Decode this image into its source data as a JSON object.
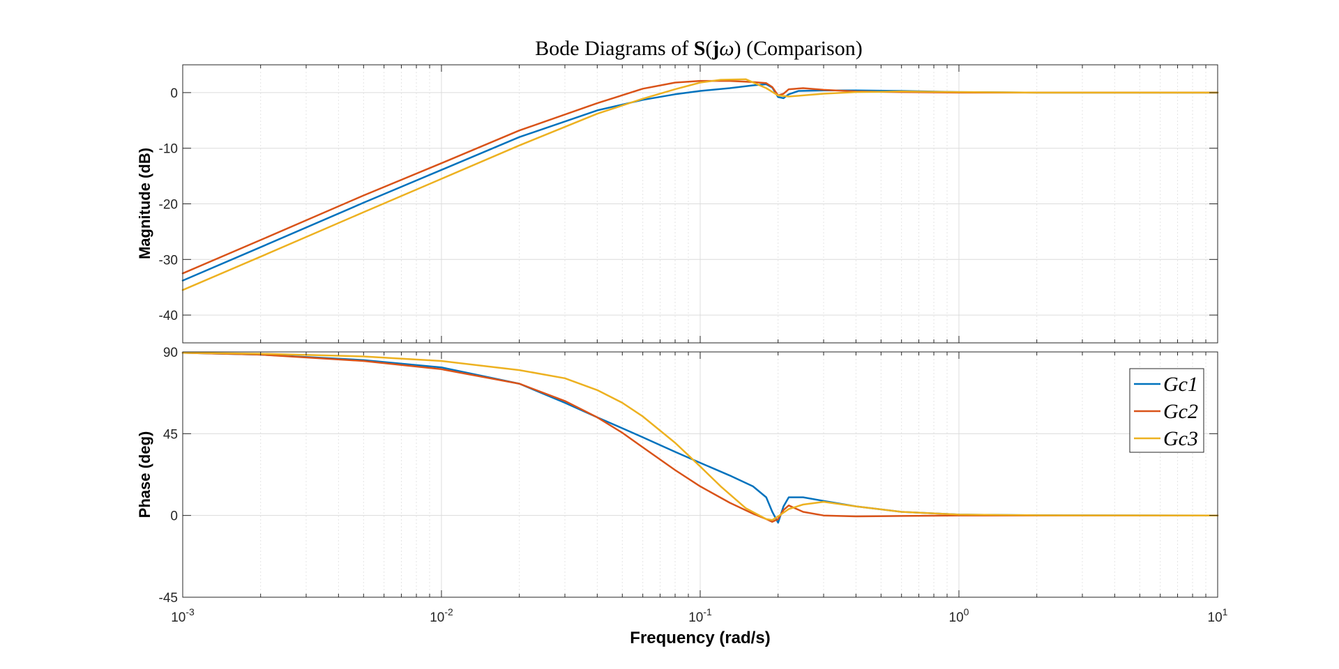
{
  "chart_data": {
    "type": "line",
    "title": "Bode Diagrams of S(jω) (Comparison)",
    "title_parts": {
      "prefix": "Bode Diagrams of ",
      "bold": "S",
      "paren_open": "(",
      "bold_j": "j",
      "omega": "ω",
      "suffix": ") (Comparison)"
    },
    "xlabel": "Frequency  (rad/s)",
    "xscale": "log",
    "xlim": [
      0.001,
      10
    ],
    "x_ticks": [
      {
        "base": "10",
        "exp": "-3"
      },
      {
        "base": "10",
        "exp": "-2"
      },
      {
        "base": "10",
        "exp": "-1"
      },
      {
        "base": "10",
        "exp": "0"
      },
      {
        "base": "10",
        "exp": "1"
      }
    ],
    "grid": true,
    "legend": {
      "location": "top-right",
      "panel": "phase"
    },
    "colors": {
      "Gc1": "#0072BD",
      "Gc2": "#D95319",
      "Gc3": "#EDB120",
      "grid": "#dcdcdc",
      "axes": "#262626"
    },
    "panels": [
      {
        "name": "magnitude",
        "ylabel": "Magnitude (dB)",
        "ylim": [
          -45,
          5
        ],
        "y_ticks": [
          "0",
          "-10",
          "-20",
          "-30",
          "-40"
        ],
        "series": [
          {
            "name": "Gc1",
            "x": [
              0.001,
              0.002,
              0.005,
              0.01,
              0.02,
              0.04,
              0.06,
              0.08,
              0.1,
              0.13,
              0.16,
              0.18,
              0.19,
              0.2,
              0.21,
              0.22,
              0.24,
              0.3,
              0.4,
              0.6,
              1,
              2,
              10
            ],
            "y": [
              -33.8,
              -27.8,
              -19.8,
              -13.9,
              -8.0,
              -3.2,
              -1.3,
              -0.3,
              0.3,
              0.8,
              1.3,
              1.5,
              0.9,
              -0.8,
              -1.0,
              -0.3,
              0.3,
              0.4,
              0.4,
              0.3,
              0.1,
              0.0,
              0.0
            ]
          },
          {
            "name": "Gc2",
            "x": [
              0.001,
              0.002,
              0.005,
              0.01,
              0.02,
              0.04,
              0.06,
              0.08,
              0.1,
              0.13,
              0.16,
              0.18,
              0.19,
              0.2,
              0.21,
              0.22,
              0.25,
              0.3,
              0.4,
              0.6,
              1,
              2,
              10
            ],
            "y": [
              -32.5,
              -26.5,
              -18.5,
              -12.7,
              -6.8,
              -1.9,
              0.7,
              1.8,
              2.1,
              2.1,
              1.9,
              1.7,
              1.0,
              -0.5,
              -0.2,
              0.6,
              0.8,
              0.5,
              0.2,
              0.1,
              0.0,
              0.0,
              0.0
            ]
          },
          {
            "name": "Gc3",
            "x": [
              0.001,
              0.002,
              0.005,
              0.01,
              0.02,
              0.04,
              0.06,
              0.08,
              0.1,
              0.12,
              0.15,
              0.18,
              0.2,
              0.22,
              0.25,
              0.3,
              0.4,
              0.6,
              1,
              2,
              10
            ],
            "y": [
              -35.5,
              -29.5,
              -21.5,
              -15.5,
              -9.5,
              -3.8,
              -1.1,
              0.6,
              1.8,
              2.3,
              2.4,
              0.8,
              -0.5,
              -0.7,
              -0.5,
              -0.2,
              0.1,
              0.2,
              0.1,
              0.0,
              0.0
            ]
          }
        ]
      },
      {
        "name": "phase",
        "ylabel": "Phase (deg)",
        "ylim": [
          -45,
          90
        ],
        "y_ticks": [
          "90",
          "45",
          "0",
          "-45"
        ],
        "series": [
          {
            "name": "Gc1",
            "x": [
              0.001,
              0.002,
              0.005,
              0.01,
              0.02,
              0.03,
              0.04,
              0.05,
              0.06,
              0.08,
              0.1,
              0.13,
              0.16,
              0.18,
              0.19,
              0.2,
              0.21,
              0.22,
              0.25,
              0.3,
              0.4,
              0.6,
              1,
              2,
              10
            ],
            "y": [
              89.5,
              88.5,
              85.5,
              81.5,
              72.5,
              62.0,
              54.0,
              48.0,
              43.0,
              35.0,
              29.0,
              22.0,
              16.0,
              10.0,
              2.0,
              -4.0,
              5.0,
              10.0,
              10.0,
              8.0,
              5.0,
              2.0,
              0.5,
              0.1,
              0.0
            ]
          },
          {
            "name": "Gc2",
            "x": [
              0.001,
              0.002,
              0.005,
              0.01,
              0.02,
              0.03,
              0.04,
              0.05,
              0.06,
              0.08,
              0.1,
              0.13,
              0.16,
              0.18,
              0.19,
              0.2,
              0.21,
              0.22,
              0.25,
              0.3,
              0.4,
              0.6,
              1,
              2,
              10
            ],
            "y": [
              89.5,
              88.5,
              85.0,
              80.5,
              72.5,
              63.0,
              54.0,
              45.5,
              37.5,
              25.0,
              16.0,
              7.0,
              1.0,
              -2.0,
              -3.5,
              -2.0,
              3.0,
              5.5,
              2.0,
              0.0,
              -0.5,
              -0.3,
              0.0,
              0.0,
              0.0
            ]
          },
          {
            "name": "Gc3",
            "x": [
              0.001,
              0.002,
              0.005,
              0.01,
              0.02,
              0.03,
              0.04,
              0.05,
              0.06,
              0.08,
              0.1,
              0.12,
              0.15,
              0.18,
              0.19,
              0.2,
              0.22,
              0.25,
              0.3,
              0.4,
              0.6,
              1,
              2,
              10
            ],
            "y": [
              89.5,
              89.0,
              87.5,
              85.0,
              80.0,
              75.5,
              69.0,
              62.0,
              54.5,
              40.0,
              27.0,
              16.0,
              4.0,
              -2.0,
              -2.5,
              -0.5,
              3.5,
              6.0,
              7.5,
              5.0,
              2.0,
              0.5,
              0.1,
              0.0
            ]
          }
        ]
      }
    ]
  }
}
